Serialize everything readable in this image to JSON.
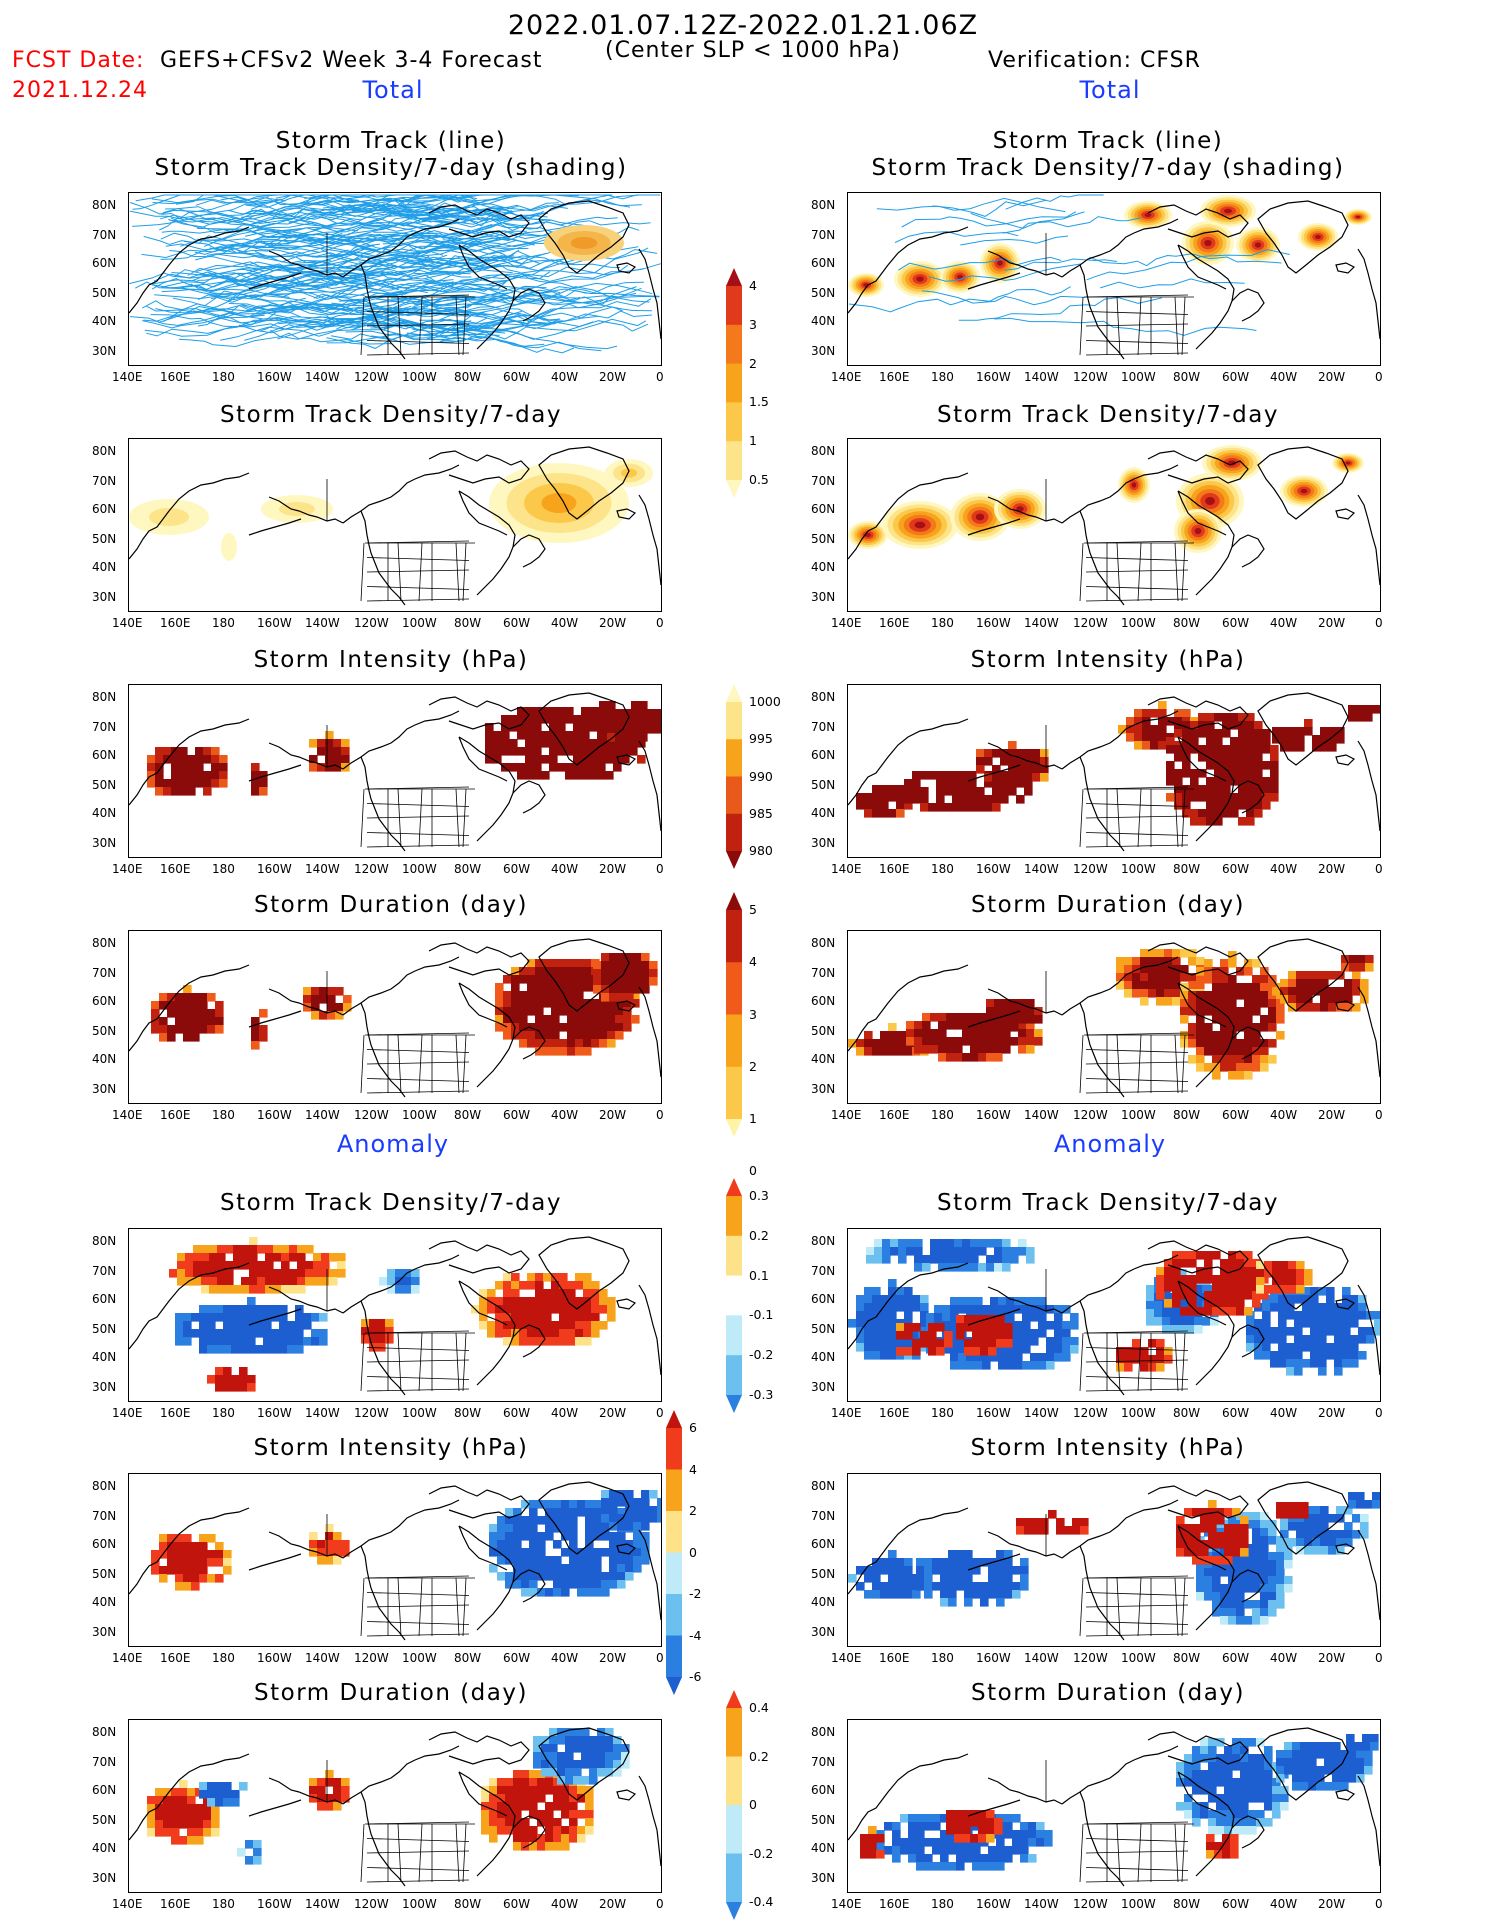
{
  "header": {
    "date_range": "2022.01.07.12Z-2022.01.21.06Z",
    "fcst_label": "FCST Date:",
    "fcst_date": "2021.12.24",
    "model": "GEFS+CFSv2 Week 3-4 Forecast",
    "criterion": "(Center SLP < 1000 hPa)",
    "verification": "Verification: CFSR"
  },
  "sections": {
    "total": "Total",
    "anomaly": "Anomaly"
  },
  "panel_titles": {
    "track_line": "Storm Track (line)",
    "track_line_density": "Storm Track Density/7-day (shading)",
    "density": "Storm Track Density/7-day",
    "intensity": "Storm Intensity (hPa)",
    "duration": "Storm Duration (day)"
  },
  "axes": {
    "lat_labels": [
      "80N",
      "70N",
      "60N",
      "50N",
      "40N",
      "30N"
    ],
    "lon_labels": [
      "140E",
      "160E",
      "180",
      "160W",
      "140W",
      "120W",
      "100W",
      "80W",
      "60W",
      "40W",
      "20W",
      "0"
    ]
  },
  "colorbars": {
    "density_total": {
      "labels": [
        "4",
        "3",
        "2",
        "1.5",
        "1",
        "0.5"
      ],
      "colors": [
        "#a50f15",
        "#e03a1a",
        "#f4791b",
        "#f8a31c",
        "#fbc84a",
        "#fde48a",
        "#fff7c0"
      ]
    },
    "intensity_total": {
      "labels": [
        "1000",
        "995",
        "990",
        "985",
        "980"
      ],
      "colors": [
        "#fff7c0",
        "#fde48a",
        "#f8a31c",
        "#e8591a",
        "#c0220f",
        "#8b0a0a"
      ]
    },
    "duration_total": {
      "labels": [
        "5",
        "4",
        "3",
        "2",
        "1",
        "0"
      ],
      "colors": [
        "#8b0a0a",
        "#c0220f",
        "#f05a1a",
        "#f8a31c",
        "#fbc84a",
        "#fff3a8"
      ]
    },
    "density_anom": {
      "labels": [
        "0.3",
        "0.2",
        "0.1",
        "-0.1",
        "-0.2",
        "-0.3"
      ],
      "colors": [
        "#f03c1c",
        "#f8a31c",
        "#fde28a",
        "#ffffff",
        "#bfeaf8",
        "#6cc0f0",
        "#2a7fe0"
      ]
    },
    "intensity_anom": {
      "labels": [
        "6",
        "4",
        "2",
        "0",
        "-2",
        "-4",
        "-6"
      ],
      "colors": [
        "#c0140c",
        "#f03c1c",
        "#f8a31c",
        "#fde28a",
        "#bfeaf8",
        "#6cc0f0",
        "#2a7fe0",
        "#1d5fd0"
      ]
    },
    "duration_anom": {
      "labels": [
        "0.4",
        "0.2",
        "0",
        "-0.2",
        "-0.4"
      ],
      "colors": [
        "#f03c1c",
        "#f8a31c",
        "#fde28a",
        "#bfeaf8",
        "#6cc0f0",
        "#2a7fe0"
      ]
    }
  }
}
